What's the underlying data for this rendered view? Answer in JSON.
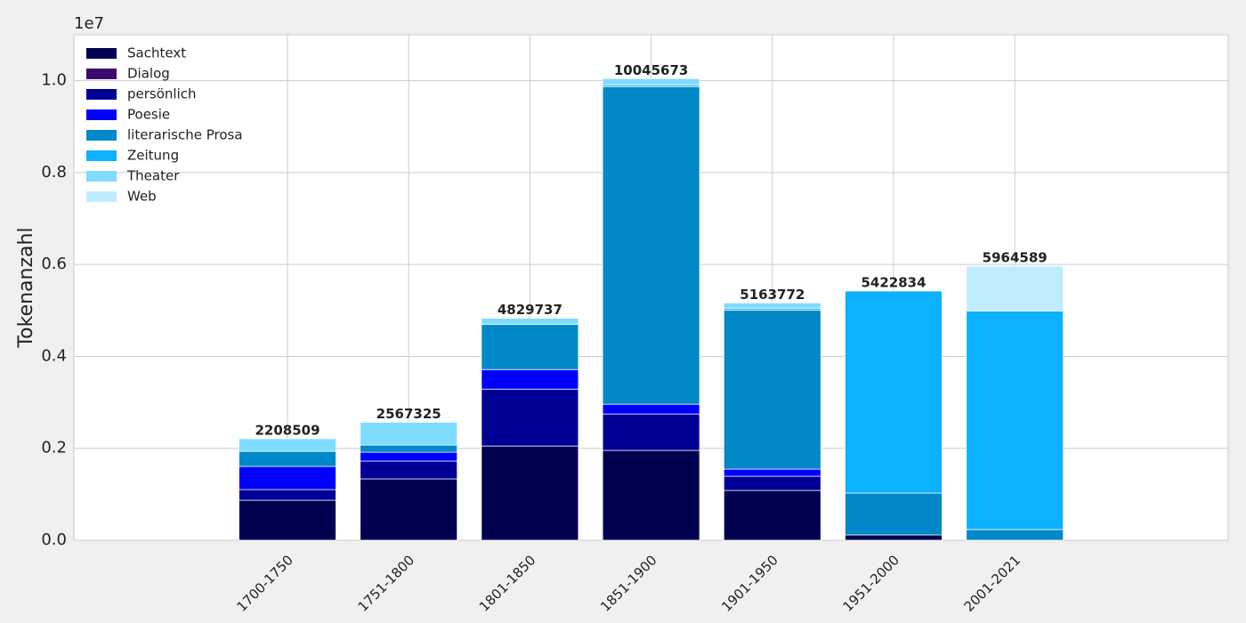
{
  "chart_data": {
    "type": "stacked_bar",
    "y_label": "Tokenanzahl",
    "y_offset_label": "1e7",
    "categories": [
      "1700-1750",
      "1751-1800",
      "1801-1850",
      "1851-1900",
      "1901-1950",
      "1951-2000",
      "2001-2021"
    ],
    "series": [
      {
        "name": "Sachtext",
        "color": "#000050",
        "values": [
          870000,
          1335000,
          2050000,
          1954000,
          1083000,
          116000,
          0
        ]
      },
      {
        "name": "Dialog",
        "color": "#3c0a6e",
        "values": [
          0,
          0,
          0,
          0,
          0,
          0,
          0
        ]
      },
      {
        "name": "persönlich",
        "color": "#000096",
        "values": [
          232000,
          387000,
          1238000,
          793000,
          309000,
          0,
          0
        ]
      },
      {
        "name": "Poesie",
        "color": "#0000ff",
        "values": [
          503000,
          193000,
          426000,
          213000,
          155000,
          0,
          0
        ]
      },
      {
        "name": "literarische Prosa",
        "color": "#0088c8",
        "values": [
          329000,
          155000,
          986000,
          6905000,
          3462000,
          909000,
          232000
        ]
      },
      {
        "name": "Zeitung",
        "color": "#0db2ff",
        "values": [
          0,
          0,
          0,
          40000,
          40000,
          4397834,
          4758000
        ]
      },
      {
        "name": "Theater",
        "color": "#7fdbff",
        "values": [
          274509,
          497325,
          129737,
          140673,
          114772,
          0,
          0
        ]
      },
      {
        "name": "Web",
        "color": "#c0ecff",
        "values": [
          0,
          0,
          0,
          0,
          0,
          0,
          974589
        ]
      }
    ],
    "totals": [
      2208509,
      2567325,
      4829737,
      10045673,
      5163772,
      5422834,
      5964589
    ],
    "ylim": [
      0,
      11000000
    ],
    "yticks": [
      {
        "value": 0,
        "label": "0.0"
      },
      {
        "value": 2000000,
        "label": "0.2"
      },
      {
        "value": 4000000,
        "label": "0.4"
      },
      {
        "value": 6000000,
        "label": "0.6"
      },
      {
        "value": 8000000,
        "label": "0.8"
      },
      {
        "value": 10000000,
        "label": "1.0"
      }
    ],
    "grid": true,
    "legend": "upper left"
  }
}
